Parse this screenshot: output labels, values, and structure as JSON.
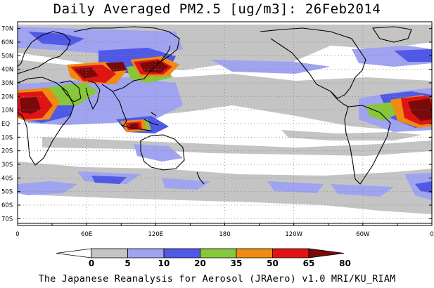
{
  "title": "Daily Averaged PM2.5 [ug/m3]: 26Feb2014",
  "footer": "The Japanese Reanalysis for Aerosol (JRAero) v1.0 MRI/KU_RIAM",
  "lat_labels": [
    "70N",
    "60N",
    "50N",
    "40N",
    "30N",
    "20N",
    "10N",
    "EQ",
    "10S",
    "20S",
    "30S",
    "40S",
    "50S",
    "60S",
    "70S"
  ],
  "lon_labels": [
    "0",
    "60E",
    "120E",
    "180",
    "120W",
    "60W",
    "0"
  ],
  "colorbar": {
    "levels": [
      "0",
      "5",
      "10",
      "20",
      "35",
      "50",
      "65",
      "80"
    ],
    "colors": [
      "#ffffff",
      "#c4c4c4",
      "#9fa3f0",
      "#5058e6",
      "#86c83a",
      "#f08a12",
      "#e01414",
      "#7a0a0a"
    ]
  },
  "map": {
    "projection": "cylindrical equidistant",
    "lon_range": [
      0,
      360
    ],
    "lat_range": [
      -75,
      75
    ],
    "grid": true,
    "field": "PM2.5 daily mean"
  }
}
